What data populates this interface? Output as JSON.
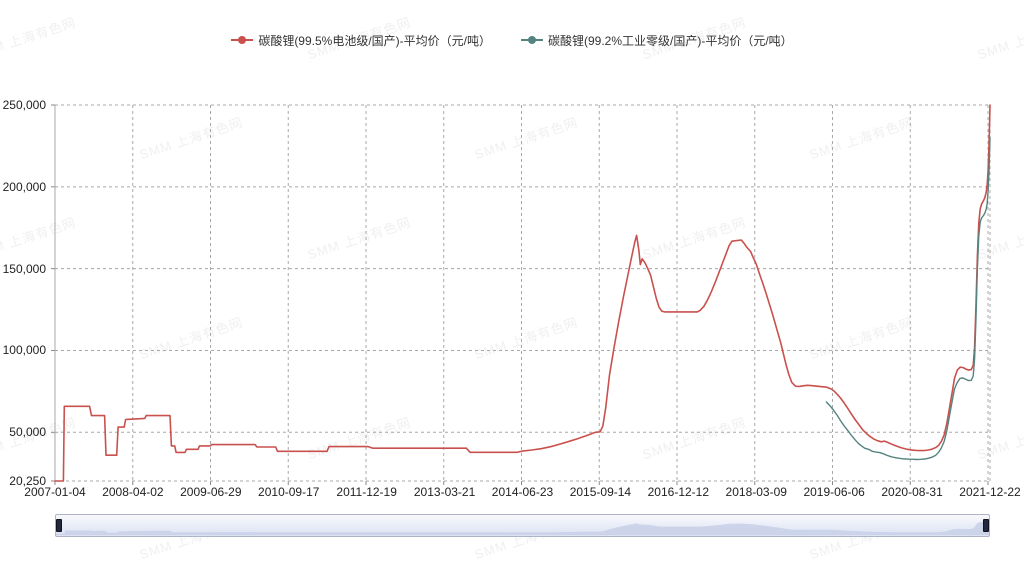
{
  "watermark": {
    "text": "SMM 上海有色网"
  },
  "legend": {
    "items": [
      {
        "label": "碳酸锂(99.5%电池级/国产)-平均价（元/吨）",
        "color": "#c9514d"
      },
      {
        "label": "碳酸锂(99.2%工业零级/国产)-平均价（元/吨）",
        "color": "#55847f"
      }
    ]
  },
  "colors": {
    "series_battery": "#c9514d",
    "series_industrial": "#55847f",
    "grid": "#a8a8a8",
    "axis_text": "#222222",
    "nav_area_fill": "#c8d0e8",
    "nav_area_line": "#96a0bd",
    "nav_handle": "#23283c"
  },
  "chart_data": {
    "type": "line",
    "title": "",
    "grid": "dashed",
    "legend_position": "top",
    "x_axis": {
      "tick_labels": [
        "2007-01-04",
        "2008-04-02",
        "2009-06-29",
        "2010-09-17",
        "2011-12-19",
        "2013-03-21",
        "2014-06-23",
        "2015-09-14",
        "2016-12-12",
        "2018-03-09",
        "2019-06-06",
        "2020-08-31",
        "2021-12-22"
      ]
    },
    "y_axis": {
      "min": 20250,
      "max": 250000,
      "unit": "元/吨",
      "ticks": [
        {
          "value": 20250,
          "label": "20,250"
        },
        {
          "value": 50000,
          "label": "50,000"
        },
        {
          "value": 100000,
          "label": "100,000"
        },
        {
          "value": 150000,
          "label": "150,000"
        },
        {
          "value": 200000,
          "label": "200,000"
        },
        {
          "value": 250000,
          "label": "250,000"
        }
      ]
    },
    "series": [
      {
        "name": "碳酸锂(99.5%电池级/国产)-平均价（元/吨）",
        "color": "#c9514d",
        "points": [
          [
            0,
            20250
          ],
          [
            0.9,
            20250
          ],
          [
            1,
            65900
          ],
          [
            3.7,
            65900
          ],
          [
            3.9,
            60200
          ],
          [
            5.3,
            60200
          ],
          [
            5.45,
            36000
          ],
          [
            6.6,
            36000
          ],
          [
            6.75,
            53200
          ],
          [
            7.4,
            53200
          ],
          [
            7.55,
            57800
          ],
          [
            9.6,
            58500
          ],
          [
            9.75,
            60200
          ],
          [
            12.3,
            60200
          ],
          [
            12.45,
            41700
          ],
          [
            12.8,
            41700
          ],
          [
            12.95,
            37700
          ],
          [
            13.9,
            37700
          ],
          [
            14.05,
            39600
          ],
          [
            15.3,
            39600
          ],
          [
            15.45,
            41700
          ],
          [
            16.6,
            41700
          ],
          [
            16.75,
            42500
          ],
          [
            21.4,
            42500
          ],
          [
            21.6,
            41000
          ],
          [
            23.6,
            41000
          ],
          [
            23.8,
            38400
          ],
          [
            29.1,
            38400
          ],
          [
            29.3,
            41300
          ],
          [
            33.5,
            41300
          ],
          [
            34,
            40300
          ],
          [
            44,
            40300
          ],
          [
            44.4,
            37800
          ],
          [
            49.4,
            37800
          ],
          [
            50,
            38500
          ],
          [
            51,
            39200
          ],
          [
            52,
            40000
          ],
          [
            53,
            41200
          ],
          [
            54,
            42800
          ],
          [
            55,
            44500
          ],
          [
            56,
            46300
          ],
          [
            57,
            48300
          ],
          [
            57.8,
            50000
          ],
          [
            58.3,
            50300
          ],
          [
            58.6,
            54000
          ],
          [
            58.9,
            65000
          ],
          [
            59.3,
            85000
          ],
          [
            59.8,
            102000
          ],
          [
            60.3,
            118000
          ],
          [
            60.8,
            133000
          ],
          [
            61.3,
            147000
          ],
          [
            61.7,
            158000
          ],
          [
            62,
            166000
          ],
          [
            62.2,
            170300
          ],
          [
            62.45,
            161000
          ],
          [
            62.6,
            152500
          ],
          [
            62.8,
            156000
          ],
          [
            63.1,
            153500
          ],
          [
            63.4,
            150000
          ],
          [
            63.7,
            146000
          ],
          [
            64,
            139000
          ],
          [
            64.3,
            132000
          ],
          [
            64.6,
            126500
          ],
          [
            64.9,
            124000
          ],
          [
            65.2,
            123600
          ],
          [
            68.7,
            123600
          ],
          [
            69,
            124500
          ],
          [
            69.4,
            127000
          ],
          [
            69.8,
            131000
          ],
          [
            70.2,
            136000
          ],
          [
            70.6,
            141500
          ],
          [
            71,
            147500
          ],
          [
            71.4,
            153500
          ],
          [
            71.8,
            159500
          ],
          [
            72.1,
            164000
          ],
          [
            72.4,
            166800
          ],
          [
            73.4,
            167500
          ],
          [
            73.7,
            165500
          ],
          [
            74,
            163000
          ],
          [
            74.4,
            160500
          ],
          [
            74.7,
            156500
          ],
          [
            75,
            152700
          ],
          [
            75.3,
            147500
          ],
          [
            75.7,
            141000
          ],
          [
            76,
            135800
          ],
          [
            76.4,
            128500
          ],
          [
            76.8,
            121000
          ],
          [
            77.2,
            113000
          ],
          [
            77.6,
            105000
          ],
          [
            77.9,
            98000
          ],
          [
            78.2,
            91000
          ],
          [
            78.5,
            85000
          ],
          [
            78.8,
            80500
          ],
          [
            79.2,
            78200
          ],
          [
            79.6,
            78000
          ],
          [
            80,
            78400
          ],
          [
            80.5,
            78700
          ],
          [
            81,
            78500
          ],
          [
            81.5,
            78200
          ],
          [
            82,
            77900
          ],
          [
            82.5,
            77600
          ],
          [
            83,
            76500
          ],
          [
            83.3,
            75300
          ],
          [
            83.7,
            73000
          ],
          [
            84,
            71000
          ],
          [
            84.4,
            68000
          ],
          [
            84.8,
            64500
          ],
          [
            85.2,
            61000
          ],
          [
            85.6,
            57500
          ],
          [
            86,
            54500
          ],
          [
            86.4,
            51500
          ],
          [
            86.8,
            49200
          ],
          [
            87.2,
            47300
          ],
          [
            87.6,
            45800
          ],
          [
            88,
            44800
          ],
          [
            88.4,
            44200
          ],
          [
            88.7,
            44600
          ],
          [
            89,
            44000
          ],
          [
            89.4,
            43000
          ],
          [
            89.8,
            42000
          ],
          [
            90.2,
            41200
          ],
          [
            90.6,
            40400
          ],
          [
            91,
            39800
          ],
          [
            91.4,
            39400
          ],
          [
            91.8,
            39100
          ],
          [
            92.2,
            38900
          ],
          [
            92.6,
            38800
          ],
          [
            93,
            38900
          ],
          [
            93.4,
            39200
          ],
          [
            93.8,
            39700
          ],
          [
            94.2,
            40700
          ],
          [
            94.5,
            42000
          ],
          [
            94.8,
            44500
          ],
          [
            95.1,
            48500
          ],
          [
            95.4,
            56000
          ],
          [
            95.7,
            66000
          ],
          [
            96,
            76000
          ],
          [
            96.2,
            83000
          ],
          [
            96.5,
            88000
          ],
          [
            96.8,
            89800
          ],
          [
            97.1,
            89600
          ],
          [
            97.4,
            88700
          ],
          [
            97.7,
            88000
          ],
          [
            98,
            88300
          ],
          [
            98.2,
            91000
          ],
          [
            98.35,
            102000
          ],
          [
            98.5,
            128000
          ],
          [
            98.65,
            158000
          ],
          [
            98.8,
            178000
          ],
          [
            98.95,
            186500
          ],
          [
            99.1,
            189500
          ],
          [
            99.3,
            191500
          ],
          [
            99.45,
            193500
          ],
          [
            99.6,
            197000
          ],
          [
            99.7,
            201500
          ],
          [
            99.8,
            210000
          ],
          [
            99.9,
            227000
          ],
          [
            100,
            250000
          ]
        ]
      },
      {
        "name": "碳酸锂(99.2%工业零级/国产)-平均价（元/吨）",
        "color": "#55847f",
        "points": [
          [
            82.5,
            68500
          ],
          [
            83,
            65500
          ],
          [
            83.3,
            63200
          ],
          [
            83.7,
            60000
          ],
          [
            84,
            57200
          ],
          [
            84.4,
            54000
          ],
          [
            84.8,
            51000
          ],
          [
            85.2,
            48000
          ],
          [
            85.6,
            45200
          ],
          [
            86,
            42800
          ],
          [
            86.3,
            41500
          ],
          [
            86.6,
            40300
          ],
          [
            87,
            39600
          ],
          [
            87.4,
            38400
          ],
          [
            87.8,
            37900
          ],
          [
            88.2,
            37600
          ],
          [
            88.6,
            36900
          ],
          [
            89,
            35900
          ],
          [
            89.4,
            35100
          ],
          [
            89.8,
            34600
          ],
          [
            90.2,
            34200
          ],
          [
            90.6,
            33900
          ],
          [
            91,
            33700
          ],
          [
            91.4,
            33600
          ],
          [
            91.8,
            33500
          ],
          [
            92.2,
            33400
          ],
          [
            92.6,
            33500
          ],
          [
            93,
            33700
          ],
          [
            93.4,
            34100
          ],
          [
            93.8,
            34800
          ],
          [
            94.2,
            36000
          ],
          [
            94.5,
            37800
          ],
          [
            94.8,
            40500
          ],
          [
            95.1,
            44500
          ],
          [
            95.4,
            51500
          ],
          [
            95.7,
            61000
          ],
          [
            96,
            70500
          ],
          [
            96.2,
            76500
          ],
          [
            96.5,
            80500
          ],
          [
            96.8,
            83000
          ],
          [
            97.1,
            83200
          ],
          [
            97.4,
            82400
          ],
          [
            97.7,
            81600
          ],
          [
            98,
            81800
          ],
          [
            98.2,
            84500
          ],
          [
            98.35,
            95000
          ],
          [
            98.5,
            120000
          ],
          [
            98.65,
            150000
          ],
          [
            98.8,
            170000
          ],
          [
            98.95,
            178500
          ],
          [
            99.1,
            181000
          ],
          [
            99.3,
            182500
          ],
          [
            99.45,
            184000
          ],
          [
            99.6,
            186500
          ],
          [
            99.7,
            190000
          ],
          [
            99.8,
            197500
          ],
          [
            99.9,
            211000
          ],
          [
            100,
            230000
          ]
        ]
      }
    ]
  }
}
